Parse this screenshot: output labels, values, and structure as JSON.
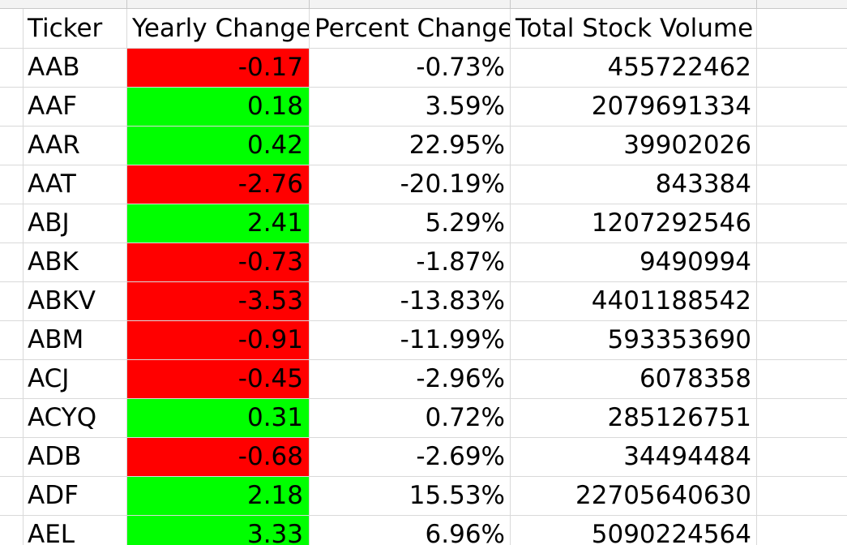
{
  "column_headers": {
    "ticker": "Ticker",
    "yearly_change": "Yearly Change",
    "percent_change": "Percent Change",
    "total_stock_volume": "Total Stock Volume"
  },
  "colors": {
    "negative_fill": "#ff0000",
    "positive_fill": "#00ff00",
    "gridline": "#d9d9d9"
  },
  "rows": [
    {
      "ticker": "AAB",
      "yearly_change": "-0.17",
      "percent_change": "-0.73%",
      "volume": "455722462",
      "trend": "negative"
    },
    {
      "ticker": "AAF",
      "yearly_change": "0.18",
      "percent_change": "3.59%",
      "volume": "2079691334",
      "trend": "positive"
    },
    {
      "ticker": "AAR",
      "yearly_change": "0.42",
      "percent_change": "22.95%",
      "volume": "39902026",
      "trend": "positive"
    },
    {
      "ticker": "AAT",
      "yearly_change": "-2.76",
      "percent_change": "-20.19%",
      "volume": "843384",
      "trend": "negative"
    },
    {
      "ticker": "ABJ",
      "yearly_change": "2.41",
      "percent_change": "5.29%",
      "volume": "1207292546",
      "trend": "positive"
    },
    {
      "ticker": "ABK",
      "yearly_change": "-0.73",
      "percent_change": "-1.87%",
      "volume": "9490994",
      "trend": "negative"
    },
    {
      "ticker": "ABKV",
      "yearly_change": "-3.53",
      "percent_change": "-13.83%",
      "volume": "4401188542",
      "trend": "negative"
    },
    {
      "ticker": "ABM",
      "yearly_change": "-0.91",
      "percent_change": "-11.99%",
      "volume": "593353690",
      "trend": "negative"
    },
    {
      "ticker": "ACJ",
      "yearly_change": "-0.45",
      "percent_change": "-2.96%",
      "volume": "6078358",
      "trend": "negative"
    },
    {
      "ticker": "ACYQ",
      "yearly_change": "0.31",
      "percent_change": "0.72%",
      "volume": "285126751",
      "trend": "positive"
    },
    {
      "ticker": "ADB",
      "yearly_change": "-0.68",
      "percent_change": "-2.69%",
      "volume": "34494484",
      "trend": "negative"
    },
    {
      "ticker": "ADF",
      "yearly_change": "2.18",
      "percent_change": "15.53%",
      "volume": "22705640630",
      "trend": "positive"
    },
    {
      "ticker": "AEL",
      "yearly_change": "3.33",
      "percent_change": "6.96%",
      "volume": "5090224564",
      "trend": "positive"
    }
  ]
}
